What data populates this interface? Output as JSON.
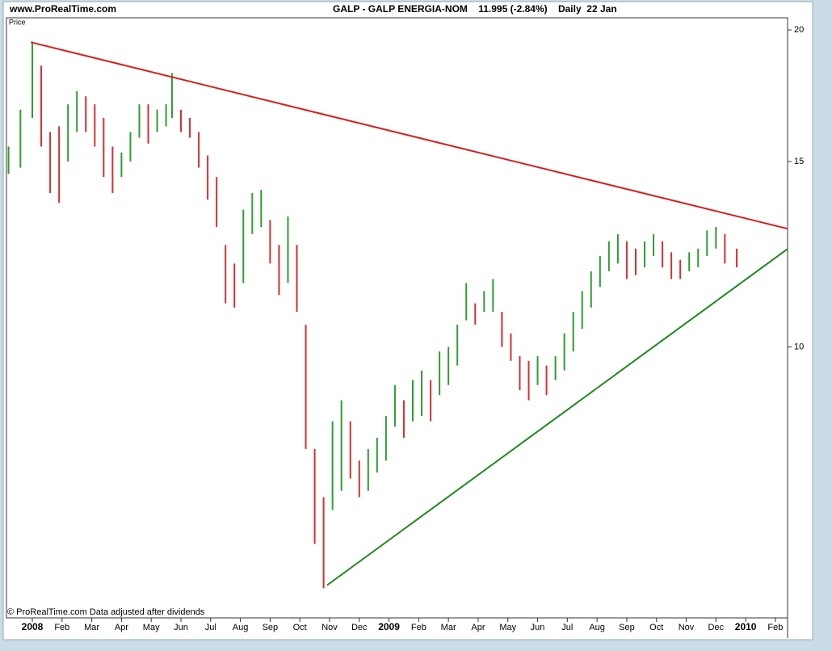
{
  "chart_data": {
    "type": "range-bar",
    "site": "www.ProRealTime.com",
    "title": "GALP - GALP ENERGIA-NOM    11.995 (-2.84%)    Daily  22 Jan",
    "y_label": "Price",
    "footnote": "© ProRealTime.com Data adjusted after dividends",
    "log_scale": true,
    "up_color": "#2e9e2e",
    "down_color": "#d43030",
    "x": [
      -0.8,
      -0.4,
      0.0,
      0.3,
      0.6,
      0.9,
      1.2,
      1.5,
      1.8,
      2.1,
      2.4,
      2.7,
      3.0,
      3.3,
      3.6,
      3.9,
      4.2,
      4.5,
      4.7,
      5.0,
      5.3,
      5.6,
      5.9,
      6.2,
      6.5,
      6.8,
      7.1,
      7.4,
      7.7,
      8.0,
      8.3,
      8.6,
      8.9,
      9.2,
      9.5,
      9.8,
      10.1,
      10.4,
      10.7,
      11.0,
      11.3,
      11.6,
      11.9,
      12.2,
      12.5,
      12.8,
      13.1,
      13.4,
      13.7,
      14.0,
      14.3,
      14.6,
      14.9,
      15.2,
      15.5,
      15.8,
      16.1,
      16.4,
      16.7,
      17.0,
      17.3,
      17.6,
      17.9,
      18.2,
      18.5,
      18.8,
      19.1,
      19.4,
      19.7,
      20.0,
      20.3,
      20.6,
      20.9,
      21.2,
      21.5,
      21.8,
      22.1,
      22.4,
      22.7,
      23.0,
      23.3,
      23.7
    ],
    "high": [
      15.5,
      16.8,
      19.5,
      18.5,
      16.0,
      16.2,
      17.0,
      17.5,
      17.3,
      17.0,
      16.5,
      15.5,
      15.3,
      16.0,
      17.0,
      17.0,
      16.8,
      17.0,
      18.2,
      16.8,
      16.5,
      16.0,
      15.2,
      14.5,
      12.5,
      12.0,
      13.5,
      14.0,
      14.1,
      13.2,
      12.5,
      13.3,
      12.5,
      10.5,
      8.0,
      7.2,
      8.5,
      8.9,
      8.5,
      7.8,
      8.0,
      8.2,
      8.6,
      9.2,
      8.9,
      9.3,
      9.5,
      9.3,
      9.9,
      10.0,
      10.5,
      11.5,
      11.0,
      11.3,
      11.6,
      10.8,
      10.3,
      9.8,
      9.7,
      9.8,
      9.6,
      9.8,
      10.3,
      10.8,
      11.3,
      11.8,
      12.2,
      12.6,
      12.8,
      12.6,
      12.4,
      12.6,
      12.8,
      12.6,
      12.3,
      12.1,
      12.3,
      12.4,
      12.9,
      13.0,
      12.8,
      12.4
    ],
    "low": [
      14.6,
      14.8,
      16.5,
      15.5,
      14.0,
      13.7,
      15.0,
      16.0,
      16.0,
      15.5,
      14.5,
      14.0,
      14.5,
      15.0,
      15.8,
      15.6,
      16.0,
      16.2,
      16.5,
      16.0,
      15.8,
      14.8,
      13.8,
      13.0,
      11.0,
      10.9,
      11.5,
      12.8,
      13.0,
      12.0,
      11.2,
      11.5,
      10.8,
      8.0,
      6.5,
      5.9,
      7.0,
      7.3,
      7.5,
      7.2,
      7.3,
      7.6,
      7.8,
      8.4,
      8.2,
      8.5,
      8.6,
      8.5,
      9.0,
      9.2,
      9.6,
      10.6,
      10.5,
      10.8,
      10.8,
      10.0,
      9.7,
      9.1,
      8.9,
      9.2,
      9.0,
      9.3,
      9.5,
      9.9,
      10.4,
      10.9,
      11.4,
      11.8,
      12.0,
      11.6,
      11.7,
      11.9,
      12.2,
      11.9,
      11.6,
      11.6,
      11.8,
      11.9,
      12.2,
      12.4,
      12.0,
      11.9
    ],
    "trendlines": [
      {
        "color": "#d81e1e",
        "x": [
          -0.05,
          25.41
        ],
        "y": [
          19.47,
          12.95
        ]
      },
      {
        "color": "#1a8a1a",
        "x": [
          9.92,
          25.41
        ],
        "y": [
          5.94,
          12.39
        ]
      }
    ],
    "xlim": [
      -0.87,
      25.41
    ],
    "ylim": [
      5.53,
      20.54
    ],
    "xticks": [
      {
        "value": 0,
        "label": "2008"
      },
      {
        "value": 1,
        "label": "Feb"
      },
      {
        "value": 2,
        "label": "Mar"
      },
      {
        "value": 3,
        "label": "Apr"
      },
      {
        "value": 4,
        "label": "May"
      },
      {
        "value": 5,
        "label": "Jun"
      },
      {
        "value": 6,
        "label": "Jul"
      },
      {
        "value": 7,
        "label": "Aug"
      },
      {
        "value": 8,
        "label": "Sep"
      },
      {
        "value": 9,
        "label": "Oct"
      },
      {
        "value": 10,
        "label": "Nov"
      },
      {
        "value": 11,
        "label": "Dec"
      },
      {
        "value": 12,
        "label": "2009"
      },
      {
        "value": 13,
        "label": "Feb"
      },
      {
        "value": 14,
        "label": "Mar"
      },
      {
        "value": 15,
        "label": "Apr"
      },
      {
        "value": 16,
        "label": "May"
      },
      {
        "value": 17,
        "label": "Jun"
      },
      {
        "value": 18,
        "label": "Jul"
      },
      {
        "value": 19,
        "label": "Aug"
      },
      {
        "value": 20,
        "label": "Sep"
      },
      {
        "value": 21,
        "label": "Oct"
      },
      {
        "value": 22,
        "label": "Nov"
      },
      {
        "value": 23,
        "label": "Dec"
      },
      {
        "value": 24,
        "label": "2010"
      },
      {
        "value": 25,
        "label": "Feb"
      }
    ],
    "yticks": [
      10,
      15,
      20
    ]
  }
}
